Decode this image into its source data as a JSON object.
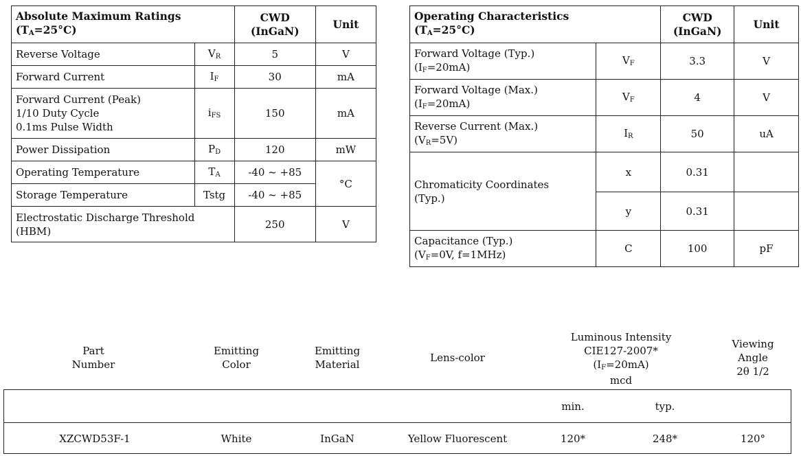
{
  "absolute_max": {
    "title": "Absolute Maximum Ratings",
    "condition": {
      "pre": "(T",
      "sub": "A",
      "post": "=25°C)"
    },
    "col_cwd": "CWD",
    "col_material": "(InGaN)",
    "col_unit": "Unit",
    "rows": [
      {
        "param": "Reverse Voltage",
        "sym": "V",
        "sym_sub": "R",
        "value": "5",
        "unit": "V"
      },
      {
        "param": "Forward Current",
        "sym": "I",
        "sym_sub": "F",
        "value": "30",
        "unit": "mA"
      },
      {
        "param_l1": "Forward Current (Peak)",
        "param_l2": "1/10 Duty Cycle",
        "param_l3": "0.1ms Pulse Width",
        "sym": "i",
        "sym_sub": "FS",
        "value": "150",
        "unit": "mA"
      },
      {
        "param": "Power Dissipation",
        "sym": "P",
        "sym_sub": "D",
        "value": "120",
        "unit": "mW"
      },
      {
        "param": "Operating Temperature",
        "sym": "T",
        "sym_sub": "A",
        "value": "-40 ~ +85"
      },
      {
        "param": "Storage Temperature",
        "sym": "Tstg",
        "value": "-40 ~ +85"
      },
      {
        "param_l1": "Electrostatic Discharge Threshold",
        "param_l2": "(HBM)",
        "value": "250",
        "unit": "V"
      }
    ],
    "temp_unit": "°C"
  },
  "operating": {
    "title": "Operating Characteristics",
    "condition": {
      "pre": "(T",
      "sub": "A",
      "post": "=25°C)"
    },
    "col_cwd": "CWD",
    "col_material": "(InGaN)",
    "col_unit": "Unit",
    "rows": [
      {
        "param": "Forward Voltage (Typ.)",
        "cond_pre": "(I",
        "cond_sub": "F",
        "cond_post": "=20mA)",
        "sym": "V",
        "sym_sub": "F",
        "value": "3.3",
        "unit": "V"
      },
      {
        "param": "Forward Voltage (Max.)",
        "cond_pre": "(I",
        "cond_sub": "F",
        "cond_post": "=20mA)",
        "sym": "V",
        "sym_sub": "F",
        "value": "4",
        "unit": "V"
      },
      {
        "param": "Reverse Current (Max.)",
        "cond_pre": "(V",
        "cond_sub": "R",
        "cond_post": "=5V)",
        "sym": "I",
        "sym_sub": "R",
        "value": "50",
        "unit": "uA"
      },
      {
        "param": "Capacitance (Typ.)",
        "cond_pre": "(V",
        "cond_sub": "F",
        "cond_post": "=0V, f=1MHz)",
        "sym": "C",
        "value": "100",
        "unit": "pF"
      }
    ],
    "chroma": {
      "param_l1": "Chromaticity Coordinates",
      "param_l2": "(Typ.)",
      "x_sym": "x",
      "x_val": "0.31",
      "y_sym": "y",
      "y_val": "0.31"
    }
  },
  "luminous": {
    "headers": {
      "part_l1": "Part",
      "part_l2": "Number",
      "color_l1": "Emitting",
      "color_l2": "Color",
      "material_l1": "Emitting",
      "material_l2": "Material",
      "lens": "Lens-color",
      "lum_l1": "Luminous Intensity",
      "lum_l2": "CIE127-2007*",
      "lum_l3_pre": "(I",
      "lum_l3_sub": "F",
      "lum_l3_post": "=20mA)",
      "lum_l4": "mcd",
      "view_l1": "Viewing",
      "view_l2": "Angle",
      "view_l3": "2θ 1/2"
    },
    "sub_headers": {
      "min": "min.",
      "typ": "typ."
    },
    "row": {
      "part": "XZCWD53F-1",
      "color": "White",
      "material": "InGaN",
      "lens": "Yellow Fluorescent",
      "min": "120*",
      "typ": "248*",
      "angle": "120°"
    }
  }
}
